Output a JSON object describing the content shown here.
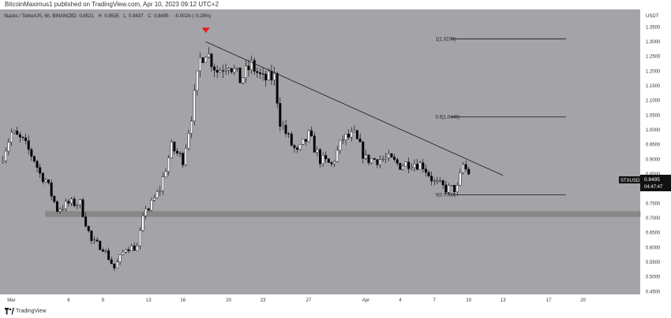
{
  "header": {
    "published_text": "BitcoinMaximus1 published on TradingView.com, Apr 10, 2023 09:12 UTC+2"
  },
  "legend": {
    "symbol_text": "Stacks / TetherUS, 6h, BINANCE",
    "o_label": "O",
    "o_value": "0.8521",
    "h_label": "H",
    "h_value": "0.8535",
    "l_label": "L",
    "l_value": "0.8437",
    "c_label": "C",
    "c_value": "0.8495",
    "change_text": "−0.0024 (−0.28%)"
  },
  "price_tag": {
    "symbol": "STXUSDT",
    "price": "0.8495",
    "countdown": "04:47:47"
  },
  "fib_levels": [
    {
      "label": "1(1.3100)",
      "value": 1.31
    },
    {
      "label": "0.5(1.0445)",
      "value": 1.0445
    },
    {
      "label": "0(0.7790)",
      "value": 0.779
    }
  ],
  "colors": {
    "background": "#a3a3a8",
    "candle_up": "#ffffff",
    "candle_down": "#000000",
    "support_zone": "#888888",
    "arrow": "#e81e1e",
    "line": "#1a1a1a",
    "price_tag_bg": "#111111"
  },
  "footer": {
    "brand": "TradingView",
    "logo_icon": "tradingview-logo-icon"
  },
  "chart_data": {
    "type": "candlestick",
    "y_axis_title": "USDT",
    "ylim": [
      0.44,
      1.41
    ],
    "y_ticks": [
      "1.3500",
      "1.3000",
      "1.2500",
      "1.2000",
      "1.1500",
      "1.1000",
      "1.0500",
      "1.0000",
      "0.9500",
      "0.9000",
      "0.8500",
      "0.8000",
      "0.7500",
      "0.7000",
      "0.6500",
      "0.6000",
      "0.5500",
      "0.5000",
      "0.4500"
    ],
    "x_tick_labels": [
      "Mar",
      "6",
      "9",
      "13",
      "16",
      "20",
      "23",
      "27",
      "Apr",
      "4",
      "7",
      "10",
      "13",
      "17",
      "20"
    ],
    "x_ticks": [
      "2023-03-01",
      "2023-03-06",
      "2023-03-09",
      "2023-03-13",
      "2023-03-16",
      "2023-03-20",
      "2023-03-23",
      "2023-03-27",
      "2023-04-01",
      "2023-04-04",
      "2023-04-07",
      "2023-04-10",
      "2023-04-13",
      "2023-04-17",
      "2023-04-20"
    ],
    "x_range": [
      "2023-02-28",
      "2023-04-25"
    ],
    "support_zone": [
      0.705,
      0.722
    ],
    "trendline": [
      {
        "date": "2023-03-18",
        "value": 1.3
      },
      {
        "date": "2023-04-13",
        "value": 0.845
      }
    ],
    "high_marker_date": "2023-03-18",
    "current_price": 0.8495,
    "path": [
      [
        "2023-02-28T00",
        0.89
      ],
      [
        "2023-03-01T00",
        0.99
      ],
      [
        "2023-03-02T00",
        0.96
      ],
      [
        "2023-03-03T00",
        0.9
      ],
      [
        "2023-03-03T12",
        0.85
      ],
      [
        "2023-03-04T00",
        0.83
      ],
      [
        "2023-03-05T00",
        0.73
      ],
      [
        "2023-03-06T00",
        0.75
      ],
      [
        "2023-03-07T00",
        0.75
      ],
      [
        "2023-03-08T00",
        0.62
      ],
      [
        "2023-03-09T00",
        0.6
      ],
      [
        "2023-03-10T00",
        0.53
      ],
      [
        "2023-03-11T00",
        0.6
      ],
      [
        "2023-03-12T00",
        0.6
      ],
      [
        "2023-03-12T18",
        0.74
      ],
      [
        "2023-03-13T00",
        0.73
      ],
      [
        "2023-03-14T00",
        0.8
      ],
      [
        "2023-03-15T00",
        0.94
      ],
      [
        "2023-03-16T00",
        0.9
      ],
      [
        "2023-03-16T18",
        1.05
      ],
      [
        "2023-03-17T12",
        1.24
      ],
      [
        "2023-03-18T00",
        1.27
      ],
      [
        "2023-03-19T00",
        1.2
      ],
      [
        "2023-03-20T00",
        1.23
      ],
      [
        "2023-03-21T00",
        1.17
      ],
      [
        "2023-03-22T00",
        1.22
      ],
      [
        "2023-03-23T00",
        1.17
      ],
      [
        "2023-03-24T00",
        1.18
      ],
      [
        "2023-03-24T12",
        1.03
      ],
      [
        "2023-03-25T12",
        0.95
      ],
      [
        "2023-03-26T00",
        0.92
      ],
      [
        "2023-03-27T00",
        0.98
      ],
      [
        "2023-03-28T00",
        0.9
      ],
      [
        "2023-03-29T00",
        0.88
      ],
      [
        "2023-03-30T00",
        0.97
      ],
      [
        "2023-03-31T00",
        0.98
      ],
      [
        "2023-04-01T00",
        0.9
      ],
      [
        "2023-04-02T00",
        0.9
      ],
      [
        "2023-04-03T00",
        0.9
      ],
      [
        "2023-04-04T00",
        0.88
      ],
      [
        "2023-04-05T00",
        0.89
      ],
      [
        "2023-04-06T00",
        0.88
      ],
      [
        "2023-04-07T00",
        0.82
      ],
      [
        "2023-04-08T00",
        0.8
      ],
      [
        "2023-04-09T00",
        0.8
      ],
      [
        "2023-04-09T12",
        0.88
      ],
      [
        "2023-04-10T00",
        0.8495
      ]
    ]
  }
}
